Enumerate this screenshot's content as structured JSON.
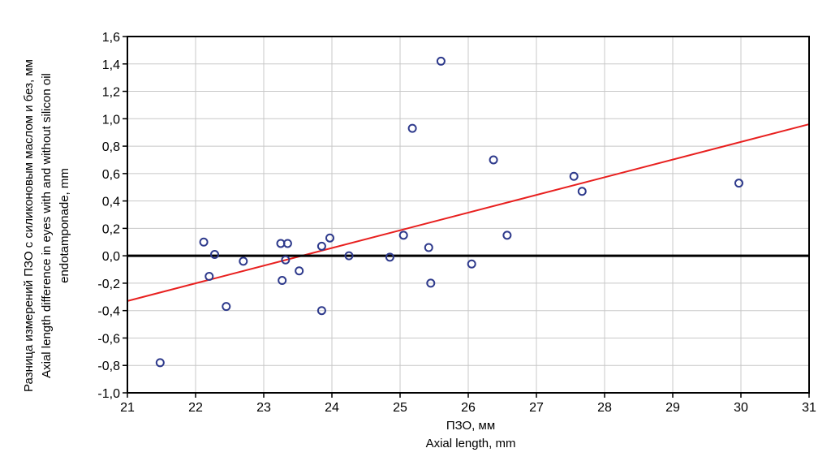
{
  "chart_data": {
    "type": "scatter",
    "title": "",
    "xlabel": [
      "ПЗО, мм",
      "Axial length, mm"
    ],
    "ylabel": [
      "Разница измерений ПЗО с силиконовым маслом и без, мм",
      "Axial length difference in eyes with and without silicon oil",
      "endotamponade, mm"
    ],
    "xlim": [
      21,
      31
    ],
    "ylim": [
      -1.0,
      1.6
    ],
    "x_ticks": [
      21,
      22,
      23,
      24,
      25,
      26,
      27,
      28,
      29,
      30,
      31
    ],
    "y_ticks": [
      -1.0,
      -0.8,
      -0.6,
      -0.4,
      -0.2,
      0.0,
      0.2,
      0.4,
      0.6,
      0.8,
      1.0,
      1.2,
      1.4,
      1.6
    ],
    "x_tick_labels": [
      "21",
      "22",
      "23",
      "24",
      "25",
      "26",
      "27",
      "28",
      "29",
      "30",
      "31"
    ],
    "y_tick_labels": [
      "-1,0",
      "-0,8",
      "-0,6",
      "-0,4",
      "-0,2",
      "0,0",
      "0,2",
      "0,4",
      "0,6",
      "0,8",
      "1,0",
      "1,2",
      "1,4",
      "1,6"
    ],
    "grid": true,
    "reference_line_y": 0,
    "points": [
      {
        "x": 21.48,
        "y": -0.78
      },
      {
        "x": 22.12,
        "y": 0.1
      },
      {
        "x": 22.2,
        "y": -0.15
      },
      {
        "x": 22.28,
        "y": 0.01
      },
      {
        "x": 22.45,
        "y": -0.37
      },
      {
        "x": 22.7,
        "y": -0.04
      },
      {
        "x": 23.25,
        "y": 0.09
      },
      {
        "x": 23.27,
        "y": -0.18
      },
      {
        "x": 23.32,
        "y": -0.03
      },
      {
        "x": 23.35,
        "y": 0.09
      },
      {
        "x": 23.52,
        "y": -0.11
      },
      {
        "x": 23.85,
        "y": -0.4
      },
      {
        "x": 23.85,
        "y": 0.07
      },
      {
        "x": 23.97,
        "y": 0.13
      },
      {
        "x": 24.25,
        "y": 0.0
      },
      {
        "x": 24.85,
        "y": -0.01
      },
      {
        "x": 25.05,
        "y": 0.15
      },
      {
        "x": 25.18,
        "y": 0.93
      },
      {
        "x": 25.42,
        "y": 0.06
      },
      {
        "x": 25.45,
        "y": -0.2
      },
      {
        "x": 25.6,
        "y": 1.42
      },
      {
        "x": 26.05,
        "y": -0.06
      },
      {
        "x": 26.37,
        "y": 0.7
      },
      {
        "x": 26.57,
        "y": 0.15
      },
      {
        "x": 27.55,
        "y": 0.58
      },
      {
        "x": 27.67,
        "y": 0.47
      },
      {
        "x": 29.97,
        "y": 0.53
      }
    ],
    "fit_line": {
      "x": [
        21,
        31
      ],
      "y": [
        -0.33,
        0.96
      ]
    },
    "colors": {
      "points": "#2e3a8c",
      "fit_line": "#e8201f",
      "reference_line": "#000000",
      "grid": "#c8c8c8"
    }
  }
}
